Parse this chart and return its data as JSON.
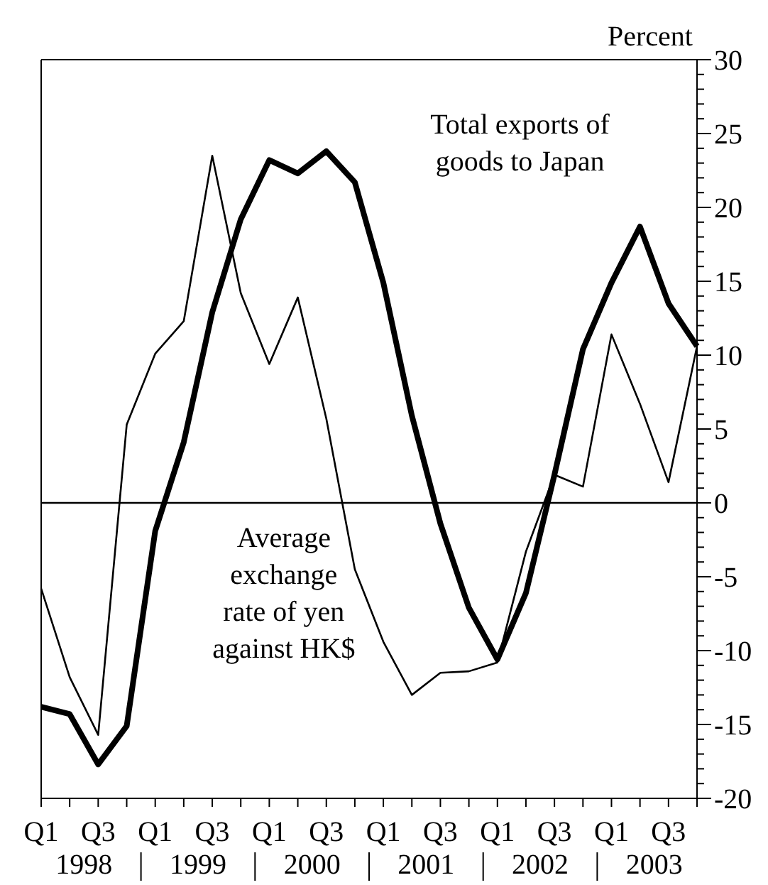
{
  "chart_data": {
    "type": "line",
    "ylabel": "Percent",
    "categories": [
      "Q1",
      null,
      "Q3",
      null,
      "Q1",
      null,
      "Q3",
      null,
      "Q1",
      null,
      "Q3",
      null,
      "Q1",
      null,
      "Q3",
      null,
      "Q1",
      null,
      "Q3",
      null,
      "Q1",
      null,
      "Q3",
      null
    ],
    "series": [
      {
        "name": "Total exports of goods to Japan",
        "color": "#000000",
        "values": [
          -13.8,
          -14.3,
          -17.7,
          -15.1,
          -1.9,
          4.1,
          12.9,
          19.2,
          23.2,
          22.3,
          23.8,
          21.7,
          14.9,
          5.9,
          -1.4,
          -7.1,
          -10.6,
          -6.1,
          1.9,
          10.4,
          14.9,
          18.7,
          13.5,
          10.6
        ]
      },
      {
        "name": "Average exchange rate of yen against HK$",
        "color": "#000000",
        "values": [
          -5.8,
          -11.8,
          -15.7,
          5.3,
          10.1,
          12.3,
          23.5,
          14.2,
          9.4,
          13.9,
          5.7,
          -4.5,
          -9.4,
          -13.0,
          -11.5,
          -11.4,
          -10.8,
          -3.3,
          1.9,
          1.1,
          11.4,
          6.7,
          1.4,
          10.6
        ]
      }
    ],
    "ylim": [
      -20,
      30
    ],
    "yticks": [
      30,
      25,
      20,
      15,
      10,
      5,
      0,
      -5,
      -10,
      -15,
      -20
    ],
    "ref_lines": [
      {
        "axis": "y",
        "value": 0
      }
    ],
    "annotations": [
      "1998",
      "1999",
      "2000",
      "2001",
      "2002",
      "2003"
    ],
    "grid": false,
    "marker": "none",
    "line_style": "solid"
  }
}
